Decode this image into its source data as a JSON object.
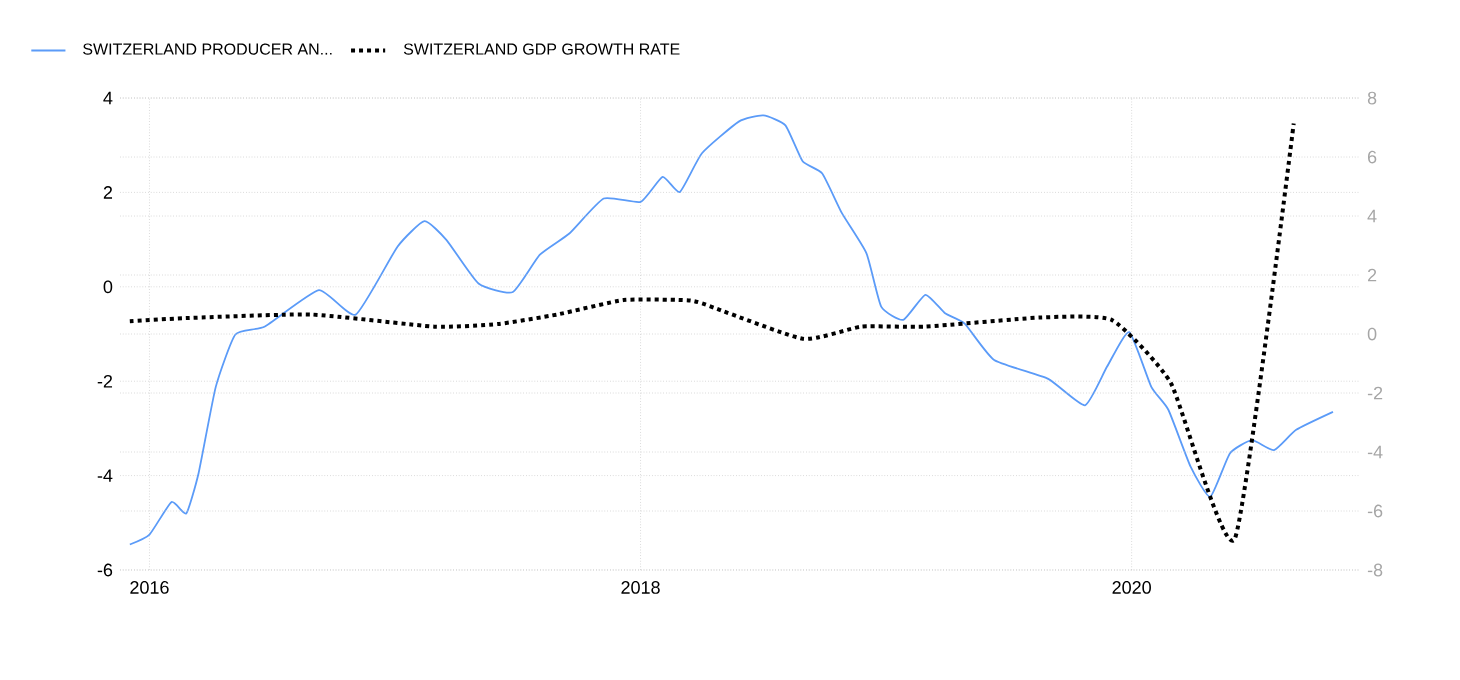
{
  "chart_data": {
    "type": "line",
    "xlim": [
      2015.88,
      2020.93
    ],
    "xticks": [
      2016,
      2018,
      2020
    ],
    "ylim": [
      -6,
      4
    ],
    "yticks": [
      -6,
      -4,
      -2,
      0,
      2,
      4
    ],
    "y2lim": [
      -8,
      8
    ],
    "y2ticks": [
      -8,
      -6,
      -4,
      -2,
      0,
      2,
      4,
      6,
      8
    ],
    "grid": true,
    "legend": "top left",
    "marker": "none",
    "series": [
      {
        "name": "SWITZERLAND PRODUCER AN...",
        "color": "#5b9bf8",
        "line_style": "solid",
        "x": [
          2015.92,
          2016.0,
          2016.09,
          2016.15,
          2016.2,
          2016.27,
          2016.35,
          2016.47,
          2016.69,
          2016.84,
          2017.01,
          2017.12,
          2017.21,
          2017.34,
          2017.48,
          2017.59,
          2017.71,
          2017.85,
          2018.0,
          2018.09,
          2018.16,
          2018.25,
          2018.4,
          2018.5,
          2018.59,
          2018.66,
          2018.74,
          2018.82,
          2018.92,
          2018.98,
          2019.07,
          2019.16,
          2019.24,
          2019.32,
          2019.44,
          2019.66,
          2019.81,
          2019.9,
          2019.99,
          2020.08,
          2020.15,
          2020.24,
          2020.32,
          2020.4,
          2020.49,
          2020.58,
          2020.67,
          2020.82
        ],
        "values": [
          -5.46,
          -5.25,
          -4.56,
          -4.8,
          -3.95,
          -2.12,
          -1.01,
          -0.84,
          -0.07,
          -0.59,
          0.85,
          1.39,
          0.99,
          0.07,
          -0.11,
          0.68,
          1.13,
          1.87,
          1.8,
          2.33,
          2.01,
          2.83,
          3.5,
          3.63,
          3.42,
          2.66,
          2.4,
          1.56,
          0.71,
          -0.42,
          -0.7,
          -0.17,
          -0.56,
          -0.78,
          -1.55,
          -1.95,
          -2.51,
          -1.69,
          -0.96,
          -2.12,
          -2.61,
          -3.81,
          -4.45,
          -3.53,
          -3.25,
          -3.46,
          -3.03,
          -2.65
        ]
      },
      {
        "name": "SWITZERLAND GDP GROWTH RATE",
        "color": "#000000",
        "line_style": "dotted",
        "axis": "y2",
        "x": [
          2015.92,
          2016.15,
          2016.66,
          2017.16,
          2017.42,
          2017.66,
          2017.93,
          2018.17,
          2018.25,
          2018.66,
          2018.9,
          2019.16,
          2019.63,
          2019.92,
          2020.16,
          2020.42,
          2020.66
        ],
        "values": [
          0.43,
          0.54,
          0.66,
          0.25,
          0.34,
          0.66,
          1.15,
          1.15,
          1.04,
          -0.16,
          0.25,
          0.25,
          0.56,
          0.47,
          -1.67,
          -6.94,
          7.14
        ]
      }
    ]
  }
}
